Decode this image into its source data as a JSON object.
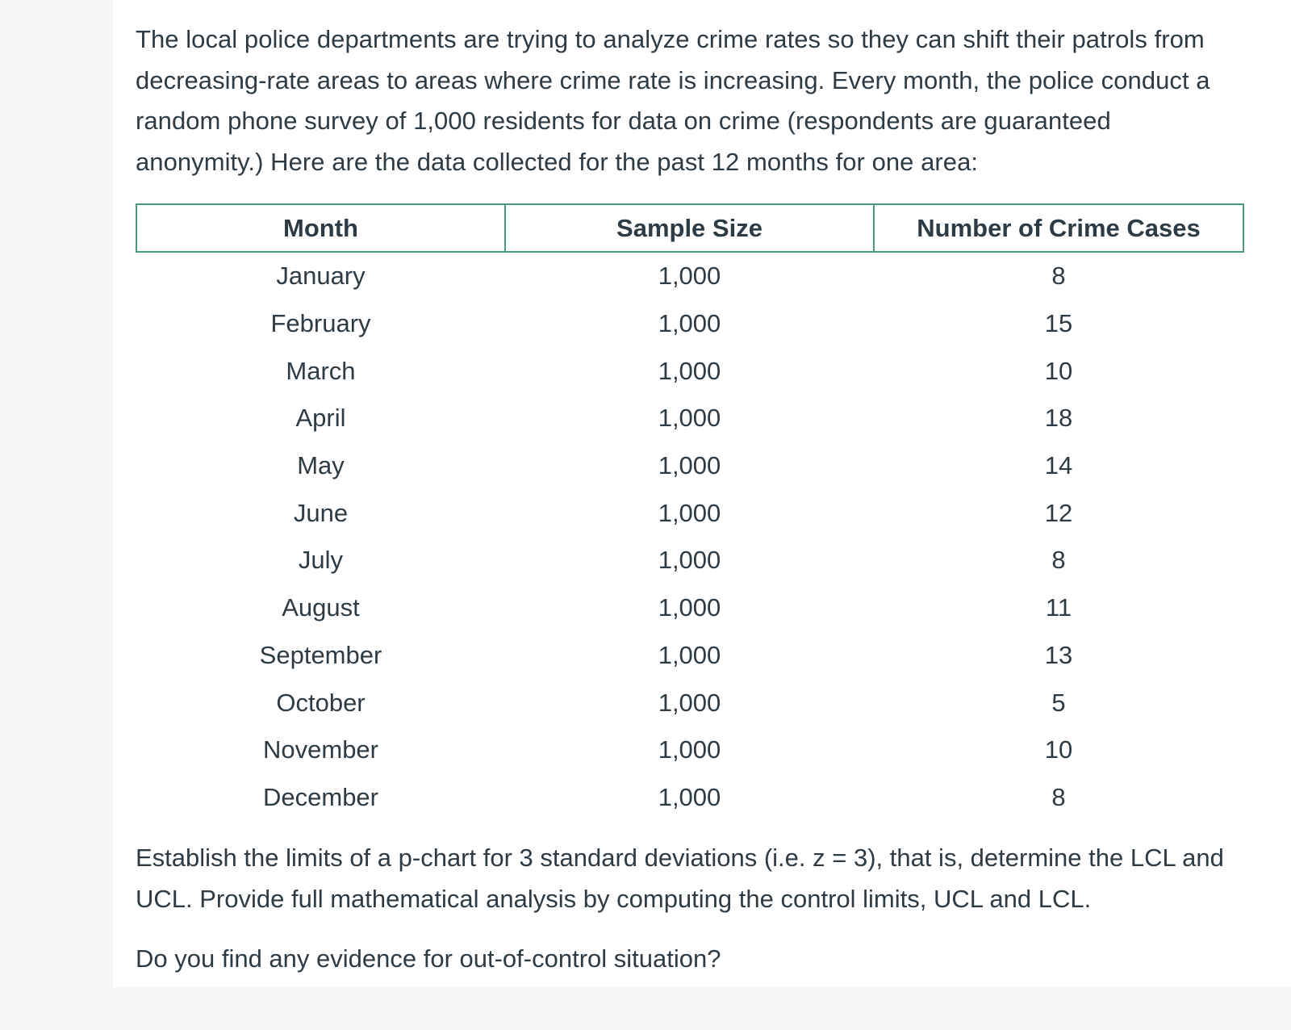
{
  "intro_text": "The local police departments are trying to analyze crime rates so they can shift their patrols from decreasing-rate areas to areas where crime rate is increasing. Every month, the police conduct a random phone survey of 1,000 residents for data on crime (respondents are guaranteed anonymity.) Here are the data collected for the past 12 months for one area:",
  "table": {
    "headers": [
      "Month",
      "Sample Size",
      "Number of Crime Cases"
    ],
    "rows": [
      [
        "January",
        "1,000",
        "8"
      ],
      [
        "February",
        "1,000",
        "15"
      ],
      [
        "March",
        "1,000",
        "10"
      ],
      [
        "April",
        "1,000",
        "18"
      ],
      [
        "May",
        "1,000",
        "14"
      ],
      [
        "June",
        "1,000",
        "12"
      ],
      [
        "July",
        "1,000",
        "8"
      ],
      [
        "August",
        "1,000",
        "11"
      ],
      [
        "September",
        "1,000",
        "13"
      ],
      [
        "October",
        "1,000",
        "5"
      ],
      [
        "November",
        "1,000",
        "10"
      ],
      [
        "December",
        "1,000",
        "8"
      ]
    ]
  },
  "question_text": "Establish the limits of a p-chart for 3 standard deviations (i.e. z = 3), that is, determine the LCL and UCL.  Provide full mathematical analysis by computing the control limits, UCL and LCL.",
  "followup_text": "Do you find any evidence for out-of-control situation?",
  "colors": {
    "table_header_border": "#4b9a7e",
    "text": "#2d3b45",
    "page_background": "#ffffff",
    "outer_background": "#f6f6f7"
  }
}
